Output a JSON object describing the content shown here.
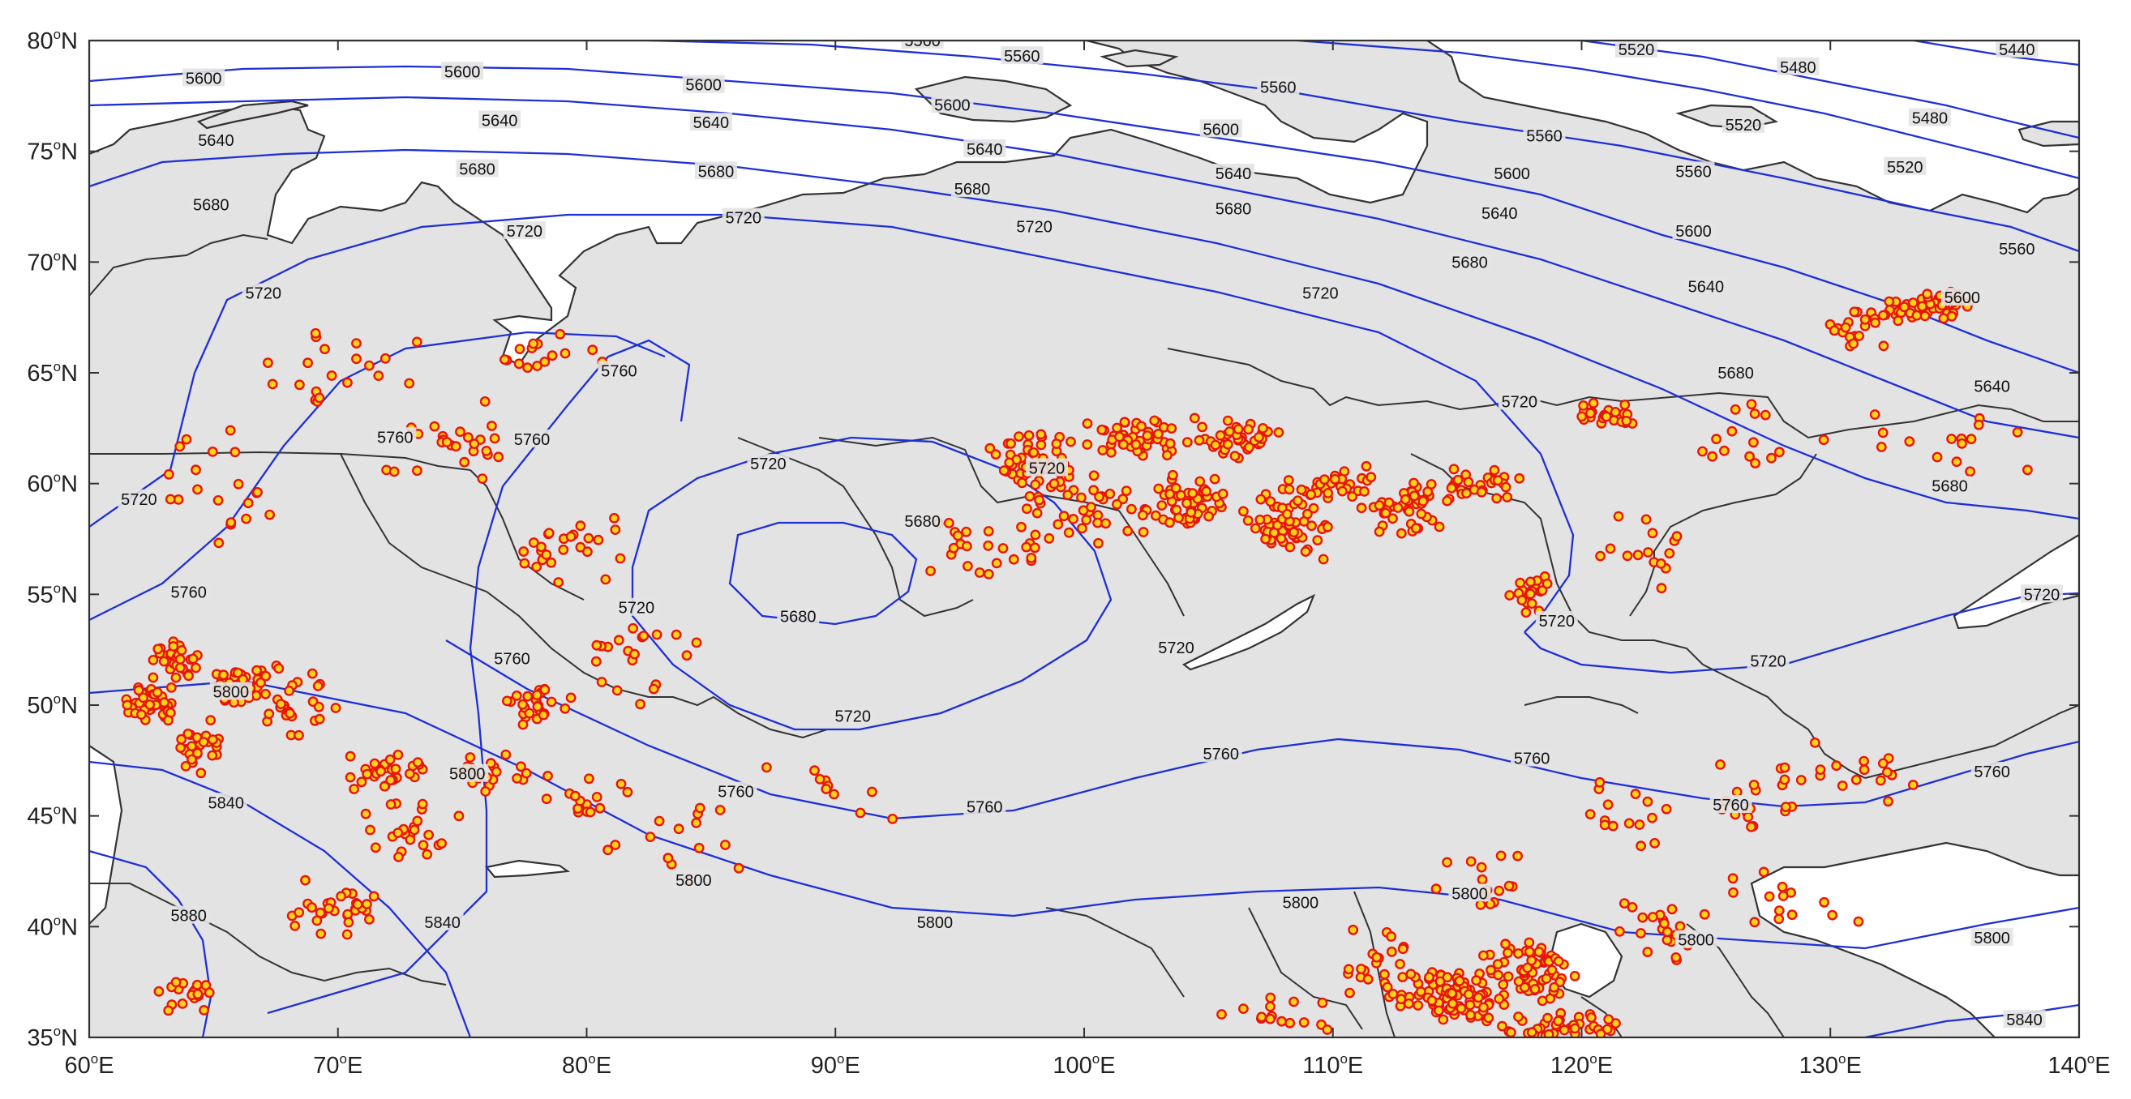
{
  "map": {
    "lon_range": [
      60,
      140
    ],
    "lat_range": [
      35,
      80
    ],
    "lon_ticks": [
      {
        "deg": "60",
        "suffix": "E"
      },
      {
        "deg": "70",
        "suffix": "E"
      },
      {
        "deg": "80",
        "suffix": "E"
      },
      {
        "deg": "90",
        "suffix": "E"
      },
      {
        "deg": "100",
        "suffix": "E"
      },
      {
        "deg": "110",
        "suffix": "E"
      },
      {
        "deg": "120",
        "suffix": "E"
      },
      {
        "deg": "130",
        "suffix": "E"
      },
      {
        "deg": "140",
        "suffix": "E"
      }
    ],
    "lat_ticks": [
      {
        "deg": "80",
        "suffix": "N"
      },
      {
        "deg": "75",
        "suffix": "N"
      },
      {
        "deg": "70",
        "suffix": "N"
      },
      {
        "deg": "65",
        "suffix": "N"
      },
      {
        "deg": "60",
        "suffix": "N"
      },
      {
        "deg": "55",
        "suffix": "N"
      },
      {
        "deg": "50",
        "suffix": "N"
      },
      {
        "deg": "45",
        "suffix": "N"
      },
      {
        "deg": "40",
        "suffix": "N"
      },
      {
        "deg": "35",
        "suffix": "N"
      }
    ],
    "contour_labels": [
      {
        "text": "5560",
        "lon": 93.5,
        "lat": 80.0
      },
      {
        "text": "5560",
        "lon": 97.5,
        "lat": 79.3
      },
      {
        "text": "5560",
        "lon": 107.8,
        "lat": 77.9
      },
      {
        "text": "5560",
        "lon": 118.5,
        "lat": 75.7
      },
      {
        "text": "5560",
        "lon": 124.5,
        "lat": 74.1
      },
      {
        "text": "5560",
        "lon": 137.5,
        "lat": 70.6
      },
      {
        "text": "5520",
        "lon": 122.2,
        "lat": 79.6
      },
      {
        "text": "5520",
        "lon": 126.5,
        "lat": 76.2
      },
      {
        "text": "5520",
        "lon": 133.0,
        "lat": 74.3
      },
      {
        "text": "5480",
        "lon": 128.7,
        "lat": 78.8
      },
      {
        "text": "5480",
        "lon": 134.0,
        "lat": 76.5
      },
      {
        "text": "5440",
        "lon": 137.5,
        "lat": 79.6
      },
      {
        "text": "5600",
        "lon": 64.6,
        "lat": 78.3
      },
      {
        "text": "5600",
        "lon": 75.0,
        "lat": 78.6
      },
      {
        "text": "5600",
        "lon": 84.7,
        "lat": 78.0
      },
      {
        "text": "5600",
        "lon": 94.7,
        "lat": 77.1
      },
      {
        "text": "5600",
        "lon": 105.5,
        "lat": 76.0
      },
      {
        "text": "5600",
        "lon": 117.2,
        "lat": 74.0
      },
      {
        "text": "5600",
        "lon": 124.5,
        "lat": 71.4
      },
      {
        "text": "5600",
        "lon": 135.3,
        "lat": 68.4
      },
      {
        "text": "5640",
        "lon": 65.1,
        "lat": 75.5
      },
      {
        "text": "5640",
        "lon": 76.5,
        "lat": 76.4
      },
      {
        "text": "5640",
        "lon": 85.0,
        "lat": 76.3
      },
      {
        "text": "5640",
        "lon": 96.0,
        "lat": 75.1
      },
      {
        "text": "5640",
        "lon": 106.0,
        "lat": 74.0
      },
      {
        "text": "5640",
        "lon": 116.7,
        "lat": 72.2
      },
      {
        "text": "5640",
        "lon": 125.0,
        "lat": 68.9
      },
      {
        "text": "5640",
        "lon": 136.5,
        "lat": 64.4
      },
      {
        "text": "5680",
        "lon": 64.9,
        "lat": 72.6
      },
      {
        "text": "5680",
        "lon": 75.6,
        "lat": 74.2
      },
      {
        "text": "5680",
        "lon": 85.2,
        "lat": 74.1
      },
      {
        "text": "5680",
        "lon": 95.5,
        "lat": 73.3
      },
      {
        "text": "5680",
        "lon": 106.0,
        "lat": 72.4
      },
      {
        "text": "5680",
        "lon": 115.5,
        "lat": 70.0
      },
      {
        "text": "5680",
        "lon": 126.2,
        "lat": 65.0
      },
      {
        "text": "5680",
        "lon": 134.8,
        "lat": 59.9
      },
      {
        "text": "5680",
        "lon": 93.5,
        "lat": 58.3
      },
      {
        "text": "5680",
        "lon": 88.5,
        "lat": 54.0
      },
      {
        "text": "5720",
        "lon": 77.5,
        "lat": 71.4
      },
      {
        "text": "5720",
        "lon": 67.0,
        "lat": 68.6
      },
      {
        "text": "5720",
        "lon": 62.0,
        "lat": 59.3
      },
      {
        "text": "5720",
        "lon": 86.3,
        "lat": 72.0
      },
      {
        "text": "5720",
        "lon": 98.0,
        "lat": 71.6
      },
      {
        "text": "5720",
        "lon": 109.5,
        "lat": 68.6
      },
      {
        "text": "5720",
        "lon": 117.5,
        "lat": 63.7
      },
      {
        "text": "5720",
        "lon": 87.3,
        "lat": 60.9
      },
      {
        "text": "5720",
        "lon": 98.5,
        "lat": 60.7
      },
      {
        "text": "5720",
        "lon": 82.0,
        "lat": 54.4
      },
      {
        "text": "5720",
        "lon": 119.0,
        "lat": 53.8
      },
      {
        "text": "5720",
        "lon": 103.7,
        "lat": 52.6
      },
      {
        "text": "5720",
        "lon": 90.7,
        "lat": 49.5
      },
      {
        "text": "5720",
        "lon": 127.5,
        "lat": 52.0
      },
      {
        "text": "5720",
        "lon": 138.5,
        "lat": 55.0
      },
      {
        "text": "5760",
        "lon": 81.3,
        "lat": 65.1
      },
      {
        "text": "5760",
        "lon": 77.8,
        "lat": 62.0
      },
      {
        "text": "5760",
        "lon": 72.3,
        "lat": 62.1
      },
      {
        "text": "5760",
        "lon": 64.0,
        "lat": 55.1
      },
      {
        "text": "5760",
        "lon": 77.0,
        "lat": 52.1
      },
      {
        "text": "5760",
        "lon": 86.0,
        "lat": 46.1
      },
      {
        "text": "5760",
        "lon": 96.0,
        "lat": 45.4
      },
      {
        "text": "5760",
        "lon": 105.5,
        "lat": 47.8
      },
      {
        "text": "5760",
        "lon": 118.0,
        "lat": 47.6
      },
      {
        "text": "5760",
        "lon": 126.0,
        "lat": 45.5
      },
      {
        "text": "5760",
        "lon": 136.5,
        "lat": 47.0
      },
      {
        "text": "5800",
        "lon": 65.7,
        "lat": 50.6
      },
      {
        "text": "5800",
        "lon": 75.2,
        "lat": 46.9
      },
      {
        "text": "5800",
        "lon": 84.3,
        "lat": 42.1
      },
      {
        "text": "5800",
        "lon": 94.0,
        "lat": 40.2
      },
      {
        "text": "5800",
        "lon": 108.7,
        "lat": 41.1
      },
      {
        "text": "5800",
        "lon": 115.5,
        "lat": 41.5
      },
      {
        "text": "5800",
        "lon": 124.6,
        "lat": 39.4
      },
      {
        "text": "5800",
        "lon": 136.5,
        "lat": 39.5
      },
      {
        "text": "5840",
        "lon": 65.5,
        "lat": 45.6
      },
      {
        "text": "5840",
        "lon": 74.2,
        "lat": 40.2
      },
      {
        "text": "5840",
        "lon": 137.8,
        "lat": 35.8
      },
      {
        "text": "5880",
        "lon": 64.0,
        "lat": 40.5
      }
    ],
    "colors": {
      "land": "#e3e3e3",
      "ocean": "#ffffff",
      "coastline": "#333333",
      "contour": "#1f2fd6",
      "marker_fill": "#ffd21a",
      "marker_stroke": "#e8140a",
      "frame": "#333333"
    }
  }
}
